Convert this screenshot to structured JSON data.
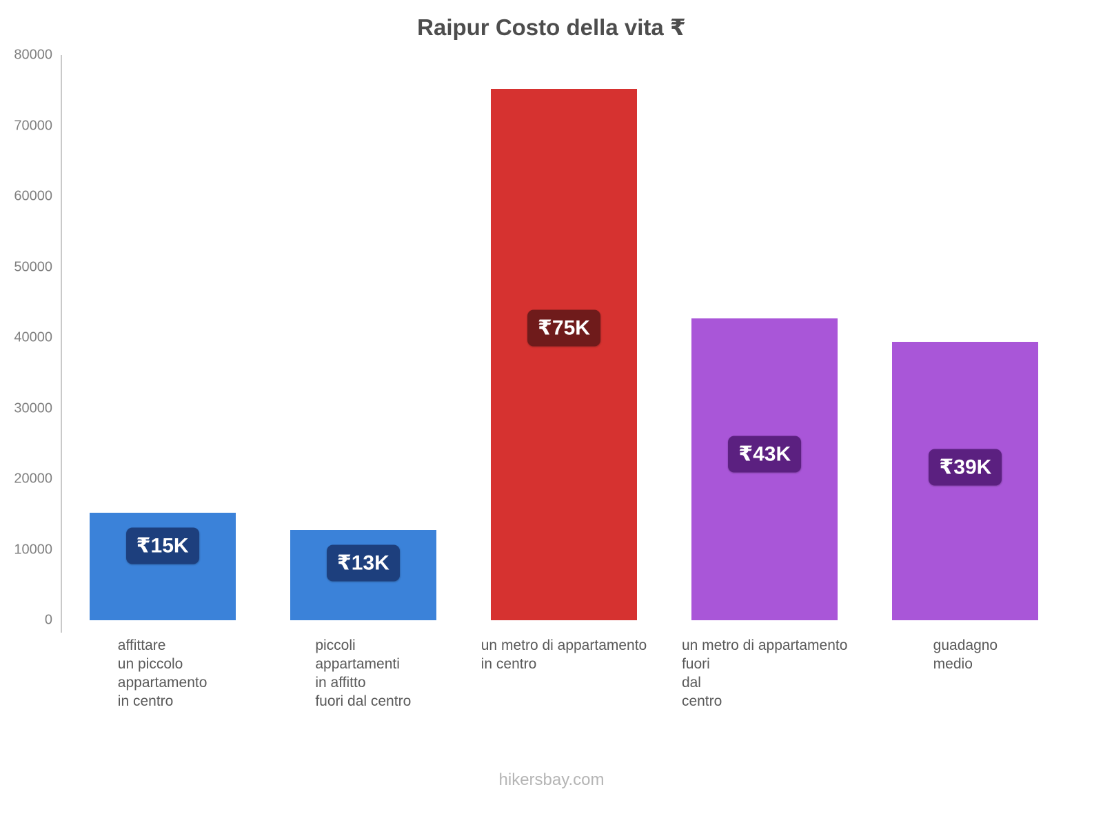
{
  "title": "Raipur Costo della vita ₹",
  "footer": "hikersbay.com",
  "chart_data": {
    "type": "bar",
    "title": "Raipur Costo della vita ₹",
    "categories": [
      "affittare\nun piccolo\nappartamento\nin centro",
      "piccoli\nappartamenti\nin affitto\nfuori dal centro",
      "un metro di appartamento\nin centro",
      "un metro di appartamento\nfuori\ndal\ncentro",
      "guadagno\nmedio"
    ],
    "values": [
      15200,
      12800,
      75200,
      42700,
      39400
    ],
    "value_labels": [
      "₹15K",
      "₹13K",
      "₹75K",
      "₹43K",
      "₹39K"
    ],
    "bar_colors": [
      "#3b82d9",
      "#3b82d9",
      "#d63230",
      "#a956d8",
      "#a956d8"
    ],
    "badge_colors": [
      "#1d3f7d",
      "#1d3f7d",
      "#6f1b1b",
      "#5b2080",
      "#5b2080"
    ],
    "xlabel": "",
    "ylabel": "",
    "ylim": [
      0,
      80000
    ],
    "yticks": [
      0,
      10000,
      20000,
      30000,
      40000,
      50000,
      60000,
      70000,
      80000
    ],
    "grid": false,
    "legend": false
  }
}
